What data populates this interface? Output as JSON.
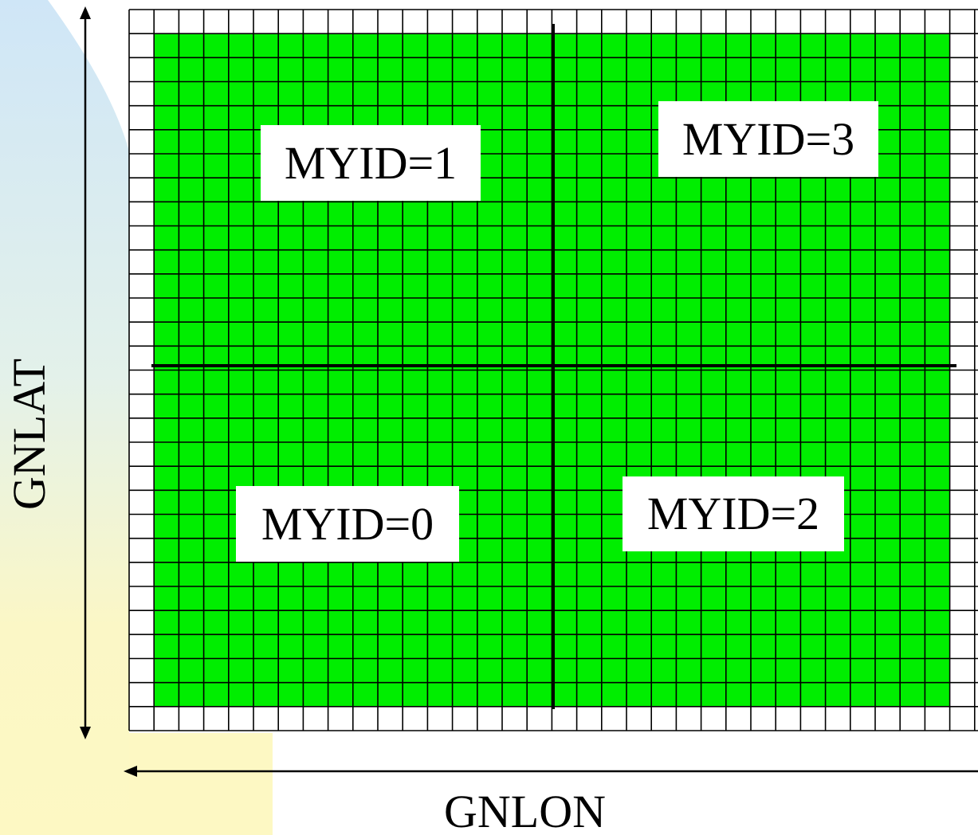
{
  "axes": {
    "vertical_label": "GNLAT",
    "horizontal_label": "GNLON"
  },
  "regions": [
    {
      "label": "MYID=1"
    },
    {
      "label": "MYID=3"
    },
    {
      "label": "MYID=0"
    },
    {
      "label": "MYID=2"
    }
  ],
  "colors": {
    "fill": "#00ee00",
    "grid_line": "#000000",
    "halo": "#ffffff"
  }
}
